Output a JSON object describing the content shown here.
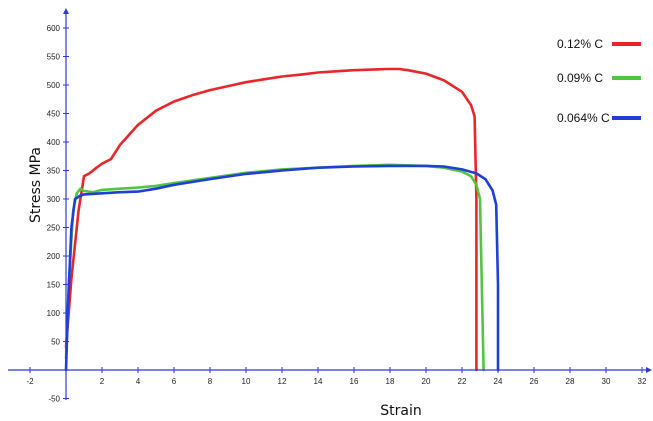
{
  "chart_data": {
    "type": "line",
    "xlabel": "Strain",
    "ylabel": "Stress MPa",
    "xlim": [
      -2,
      32
    ],
    "ylim": [
      -50,
      600
    ],
    "x_ticks": [
      "-2",
      "2",
      "4",
      "6",
      "8",
      "10",
      "12",
      "14",
      "16",
      "18",
      "20",
      "22",
      "24",
      "26",
      "28",
      "30",
      "32"
    ],
    "y_ticks": [
      "-50",
      "50",
      "100",
      "150",
      "200",
      "250",
      "300",
      "350",
      "400",
      "450",
      "500",
      "550",
      "600"
    ],
    "grid": false,
    "legend_position": "top-right",
    "axis_color": "#2b3bd6",
    "series": [
      {
        "name": "0.12% C",
        "color": "#e8262a",
        "x": [
          0,
          0.3,
          0.7,
          1.0,
          1.3,
          1.7,
          2.0,
          2.5,
          3,
          4,
          5,
          6,
          7,
          8,
          9,
          10,
          11,
          12,
          13,
          14,
          15,
          16,
          17,
          17.8,
          18.5,
          19,
          20,
          21,
          22,
          22.5,
          22.7,
          22.8,
          22.8
        ],
        "y": [
          40,
          160,
          280,
          340,
          345,
          355,
          362,
          370,
          395,
          430,
          455,
          471,
          482,
          491,
          498,
          505,
          510,
          515,
          518,
          522,
          524,
          526,
          527,
          528,
          528,
          526,
          520,
          508,
          488,
          465,
          445,
          300,
          0
        ]
      },
      {
        "name": "0.09% C",
        "color": "#4fc742",
        "x": [
          0,
          0.15,
          0.4,
          0.6,
          0.8,
          1,
          1.5,
          2,
          3,
          4,
          5,
          6,
          8,
          10,
          12,
          14,
          16,
          18,
          20,
          21,
          22,
          22.5,
          22.8,
          23,
          23.1,
          23.2
        ],
        "y": [
          20,
          150,
          280,
          310,
          318,
          314,
          312,
          316,
          318,
          320,
          323,
          328,
          337,
          346,
          352,
          355,
          358,
          360,
          358,
          355,
          348,
          340,
          325,
          300,
          150,
          0
        ]
      },
      {
        "name": "0.064% C",
        "color": "#1f3fd6",
        "x": [
          0,
          0.1,
          0.3,
          0.5,
          0.8,
          1,
          2,
          3,
          4,
          5,
          6,
          8,
          10,
          12,
          14,
          16,
          18,
          20,
          21,
          22,
          22.8,
          23.3,
          23.7,
          23.9,
          24.0,
          24.0
        ],
        "y": [
          0,
          100,
          250,
          300,
          306,
          308,
          310,
          312,
          313,
          318,
          325,
          335,
          344,
          350,
          355,
          357,
          358,
          358,
          357,
          352,
          345,
          335,
          315,
          290,
          150,
          0
        ]
      }
    ]
  }
}
